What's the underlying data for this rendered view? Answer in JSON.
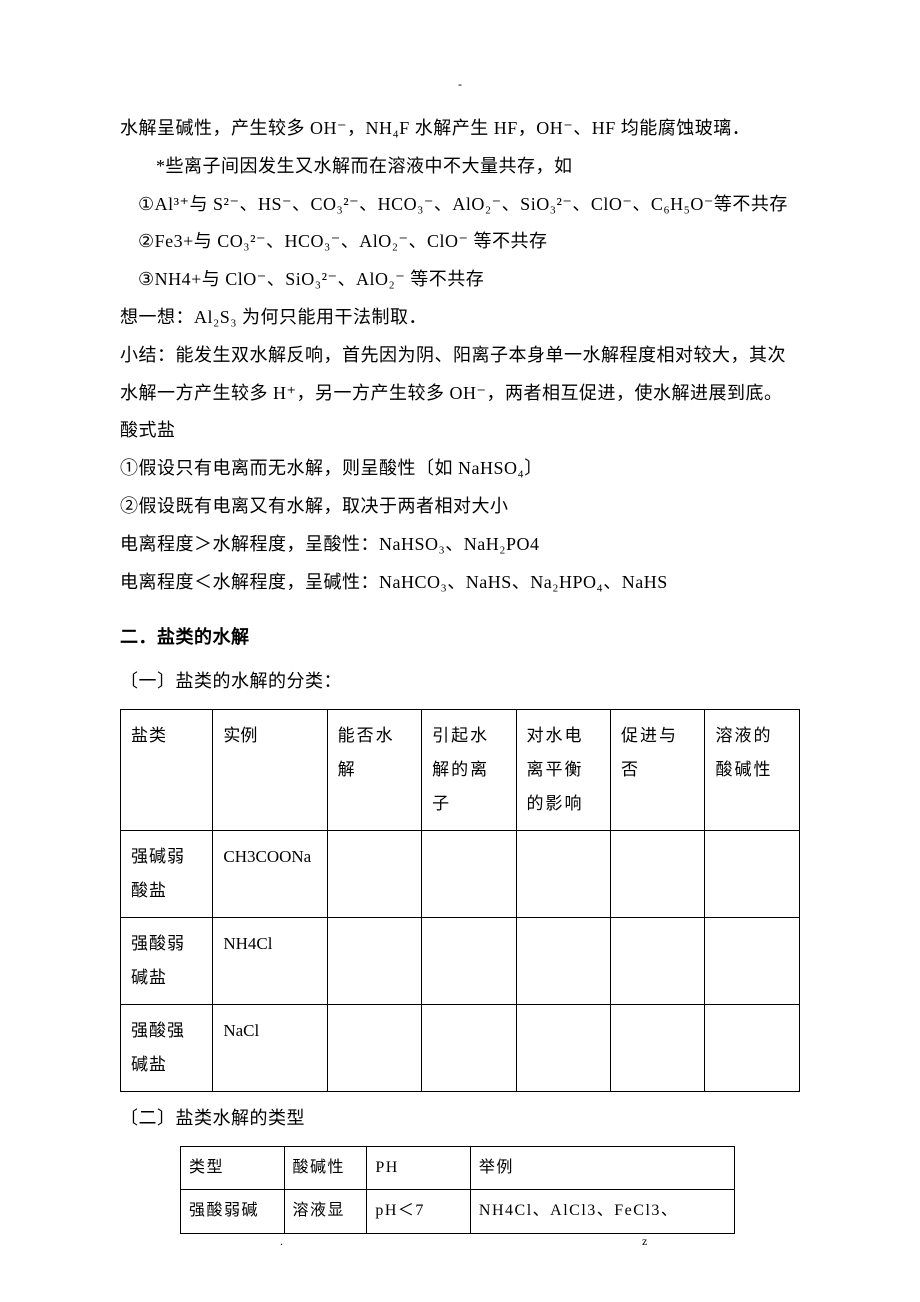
{
  "marks": {
    "top_dash": "-",
    "bottom_dot": ".",
    "bottom_z": "z"
  },
  "paras": {
    "p1": "水解呈碱性，产生较多 OH⁻，NH₄F 水解产生 HF，OH⁻、HF 均能腐蚀玻璃．",
    "p2": "*些离子间因发生又水解而在溶液中不大量共存，如",
    "p3": "①Al³⁺与 S²⁻、HS⁻、CO₃²⁻、HCO₃⁻、AlO₂⁻、SiO₃²⁻、ClO⁻、C₆H₅O⁻等不共存",
    "p4": "②Fe3+与 CO₃²⁻、HCO₃⁻、AlO₂⁻、ClO⁻  等不共存",
    "p5": "③NH4+与 ClO⁻、SiO₃²⁻、AlO₂⁻  等不共存",
    "p6": "想一想：Al₂S₃ 为何只能用干法制取．",
    "p7": "小结：能发生双水解反响，首先因为阴、阳离子本身单一水解程度相对较大，其次水解一方产生较多 H⁺，另一方产生较多 OH⁻，两者相互促进，使水解进展到底。",
    "p8": "酸式盐",
    "p9": "①假设只有电离而无水解，则呈酸性〔如 NaHSO₄〕",
    "p10": "②假设既有电离又有水解，取决于两者相对大小",
    "p11": "电离程度＞水解程度，呈酸性：NaHSO₃、NaH₂PO4",
    "p12": "电离程度＜水解程度，呈碱性：NaHCO₃、NaHS、Na₂HPO₄、NaHS"
  },
  "section2": {
    "title": "二．盐类的水解",
    "sub1": "〔一〕盐类的水解的分类：",
    "sub2": "〔二〕盐类水解的类型"
  },
  "table1": {
    "headers": [
      "盐类",
      "实例",
      "能否水解",
      "引起水解的离子",
      "对水电离平衡的影响",
      "促进与否",
      "溶液的酸碱性"
    ],
    "rows": [
      [
        "强碱弱酸盐",
        "CH3COONa",
        "",
        "",
        "",
        "",
        ""
      ],
      [
        "强酸弱碱盐",
        "NH4Cl",
        "",
        "",
        "",
        "",
        ""
      ],
      [
        "强酸强碱盐",
        "NaCl",
        "",
        "",
        "",
        "",
        ""
      ]
    ]
  },
  "table2": {
    "headers": [
      "类型",
      "酸碱性",
      "PH",
      "举例"
    ],
    "rows": [
      [
        "强酸弱碱",
        "溶液显",
        "pH＜7",
        "NH4Cl、AlCl3、FeCl3、"
      ]
    ]
  }
}
